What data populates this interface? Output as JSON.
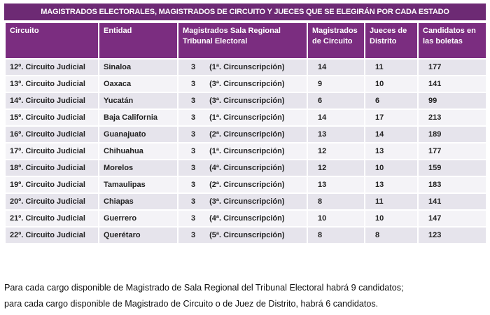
{
  "title": "MAGISTRADOS ELECTORALES, MAGISTRADOS DE CIRCUITO Y JUECES QUE SE ELEGIRÁN POR CADA ESTADO",
  "table": {
    "headers": [
      "Circuito",
      "Entidad",
      "Magistrados Sala Regional Tribunal Electoral",
      "Magistrados de Circuito",
      "Jueces de Distrito",
      "Candidatos en las boletas"
    ],
    "rows": [
      [
        "12º. Circuito Judicial",
        "Sinaloa",
        "3",
        "(1ª. Circunscripción)",
        14,
        11,
        177
      ],
      [
        "13º. Circuito Judicial",
        "Oaxaca",
        "3",
        "(3ª. Circunscripción)",
        9,
        10,
        141
      ],
      [
        "14º. Circuito Judicial",
        "Yucatán",
        "3",
        "(3ª. Circunscripción)",
        6,
        6,
        99
      ],
      [
        "15º. Circuito Judicial",
        "Baja California",
        "3",
        "(1ª. Circunscripción)",
        14,
        17,
        213
      ],
      [
        "16º. Circuito Judicial",
        "Guanajuato",
        "3",
        "(2ª. Circunscripción)",
        13,
        14,
        189
      ],
      [
        "17º. Circuito Judicial",
        "Chihuahua",
        "3",
        "(1ª. Circunscripción)",
        12,
        13,
        177
      ],
      [
        "18º. Circuito Judicial",
        "Morelos",
        "3",
        "(4ª. Circunscripción)",
        12,
        10,
        159
      ],
      [
        "19º. Circuito Judicial",
        "Tamaulipas",
        "3",
        "(2ª. Circunscripción)",
        13,
        13,
        183
      ],
      [
        "20º. Circuito Judicial",
        "Chiapas",
        "3",
        "(3ª. Circunscripción)",
        8,
        11,
        141
      ],
      [
        "21º. Circuito Judicial",
        "Guerrero",
        "3",
        "(4ª. Circunscripción)",
        10,
        10,
        147
      ],
      [
        "22º. Circuito Judicial",
        "Querétaro",
        "3",
        "(5ª. Circunscripción)",
        8,
        8,
        123
      ]
    ]
  },
  "notes": [
    "Para cada cargo disponible de Magistrado de Sala Regional del Tribunal Electoral habrá 9 candidatos;",
    "para cada cargo disponible de Magistrado de Circuito o de Juez de Distrito, habrá 6 candidatos."
  ]
}
